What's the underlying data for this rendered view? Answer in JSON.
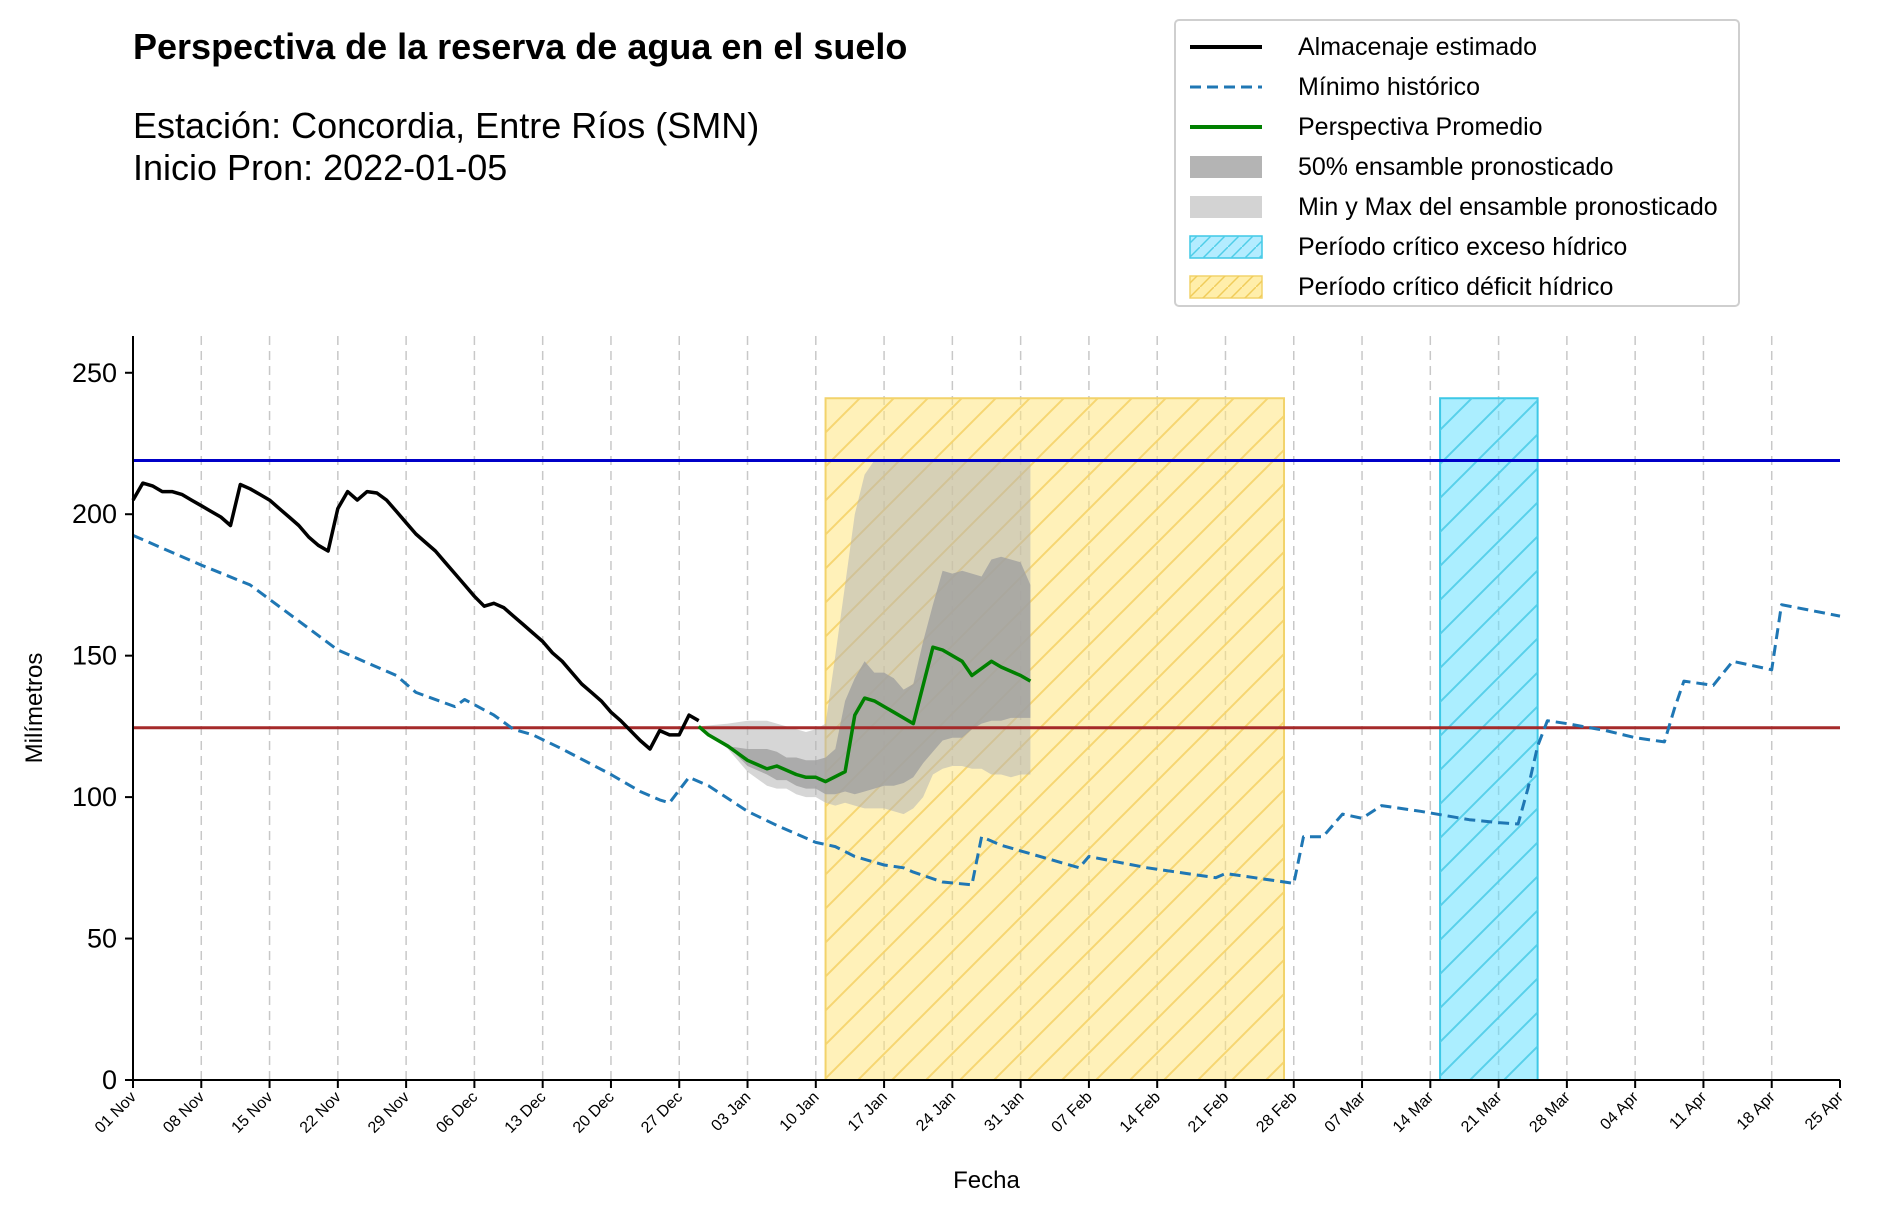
{
  "header": {
    "title": "Perspectiva de la reserva de agua en el suelo",
    "station": "Estación: Concordia, Entre Ríos (SMN)",
    "start": "Inicio Pron: 2022-01-05"
  },
  "chart_data": {
    "type": "line",
    "xlabel": "Fecha",
    "ylabel": "Milímetros",
    "x_start": "2021-11-01",
    "x_end": "2022-04-25",
    "xlim_days": [
      0,
      175
    ],
    "ylim": [
      0,
      263
    ],
    "yticks": [
      0,
      50,
      100,
      150,
      200,
      250
    ],
    "xticks": [
      {
        "day": 0,
        "label": "01 Nov"
      },
      {
        "day": 7,
        "label": "08 Nov"
      },
      {
        "day": 14,
        "label": "15 Nov"
      },
      {
        "day": 21,
        "label": "22 Nov"
      },
      {
        "day": 28,
        "label": "29 Nov"
      },
      {
        "day": 35,
        "label": "06 Dec"
      },
      {
        "day": 42,
        "label": "13 Dec"
      },
      {
        "day": 49,
        "label": "20 Dec"
      },
      {
        "day": 56,
        "label": "27 Dec"
      },
      {
        "day": 63,
        "label": "03 Jan"
      },
      {
        "day": 70,
        "label": "10 Jan"
      },
      {
        "day": 77,
        "label": "17 Jan"
      },
      {
        "day": 84,
        "label": "24 Jan"
      },
      {
        "day": 91,
        "label": "31 Jan"
      },
      {
        "day": 98,
        "label": "07 Feb"
      },
      {
        "day": 105,
        "label": "14 Feb"
      },
      {
        "day": 112,
        "label": "21 Feb"
      },
      {
        "day": 119,
        "label": "28 Feb"
      },
      {
        "day": 126,
        "label": "07 Mar"
      },
      {
        "day": 133,
        "label": "14 Mar"
      },
      {
        "day": 140,
        "label": "21 Mar"
      },
      {
        "day": 147,
        "label": "28 Mar"
      },
      {
        "day": 154,
        "label": "04 Apr"
      },
      {
        "day": 161,
        "label": "11 Apr"
      },
      {
        "day": 168,
        "label": "18 Apr"
      },
      {
        "day": 175,
        "label": "25 Apr"
      }
    ],
    "grid": "x-dashed",
    "legend_position": "top-right",
    "reference_lines": [
      {
        "y": 219,
        "color": "#0000c8"
      },
      {
        "y": 124.5,
        "color": "#a52a2a"
      }
    ],
    "periods": [
      {
        "name": "Período crítico déficit hídrico",
        "start_day": 71,
        "end_day": 118,
        "y_top": 241,
        "color": "#ffe680"
      },
      {
        "name": "Período crítico exceso hídrico",
        "start_day": 134,
        "end_day": 144,
        "y_top": 241,
        "color": "#66e0ff"
      }
    ],
    "series": [
      {
        "name": "Almacenaje estimado",
        "color": "#000000",
        "style": "solid",
        "points": [
          [
            0,
            205
          ],
          [
            1,
            211
          ],
          [
            2,
            210
          ],
          [
            3,
            208
          ],
          [
            4,
            208
          ],
          [
            5,
            207
          ],
          [
            6,
            205
          ],
          [
            7,
            203
          ],
          [
            8,
            201
          ],
          [
            9,
            199
          ],
          [
            10,
            196
          ],
          [
            11,
            210.5
          ],
          [
            12,
            209
          ],
          [
            13,
            207
          ],
          [
            14,
            205
          ],
          [
            15,
            202
          ],
          [
            16,
            199
          ],
          [
            17,
            196
          ],
          [
            18,
            192
          ],
          [
            19,
            189
          ],
          [
            20,
            187
          ],
          [
            21,
            202
          ],
          [
            22,
            208
          ],
          [
            23,
            205
          ],
          [
            24,
            208
          ],
          [
            25,
            207.5
          ],
          [
            26,
            205
          ],
          [
            27,
            201
          ],
          [
            28,
            197
          ],
          [
            29,
            193
          ],
          [
            30,
            190
          ],
          [
            31,
            187
          ],
          [
            32,
            183
          ],
          [
            33,
            179
          ],
          [
            34,
            175
          ],
          [
            35,
            171
          ],
          [
            36,
            167.5
          ],
          [
            37,
            168.5
          ],
          [
            38,
            167
          ],
          [
            39,
            164
          ],
          [
            40,
            161
          ],
          [
            41,
            158
          ],
          [
            42,
            155
          ],
          [
            43,
            151
          ],
          [
            44,
            148
          ],
          [
            45,
            144
          ],
          [
            46,
            140
          ],
          [
            47,
            137
          ],
          [
            48,
            134
          ],
          [
            49,
            130
          ],
          [
            50,
            127
          ],
          [
            51,
            123.5
          ],
          [
            52,
            120
          ],
          [
            53,
            117
          ],
          [
            54,
            123.5
          ],
          [
            55,
            122
          ],
          [
            56,
            122
          ],
          [
            57,
            129
          ],
          [
            58,
            127
          ]
        ]
      },
      {
        "name": "Mínimo histórico",
        "color": "#1f77b4",
        "style": "dashed",
        "points": [
          [
            0,
            192.5
          ],
          [
            7,
            182
          ],
          [
            12,
            175
          ],
          [
            21,
            152
          ],
          [
            27,
            143
          ],
          [
            29,
            137
          ],
          [
            33,
            132
          ],
          [
            34,
            134.5
          ],
          [
            37,
            129
          ],
          [
            39,
            124
          ],
          [
            41,
            122
          ],
          [
            44,
            117
          ],
          [
            49,
            108
          ],
          [
            52,
            102
          ],
          [
            54,
            99
          ],
          [
            55,
            98
          ],
          [
            57,
            107
          ],
          [
            59,
            104
          ],
          [
            63,
            95
          ],
          [
            66,
            90
          ],
          [
            70,
            84
          ],
          [
            72,
            82.5
          ],
          [
            74,
            79
          ],
          [
            77,
            76
          ],
          [
            79,
            75
          ],
          [
            80,
            73.5
          ],
          [
            83,
            70
          ],
          [
            86,
            69
          ],
          [
            87,
            86
          ],
          [
            89,
            83
          ],
          [
            91,
            81
          ],
          [
            94,
            78
          ],
          [
            97,
            75
          ],
          [
            98,
            79
          ],
          [
            101,
            77
          ],
          [
            104,
            75
          ],
          [
            108,
            73
          ],
          [
            111,
            71.5
          ],
          [
            112,
            73
          ],
          [
            115,
            71.5
          ],
          [
            119,
            69.5
          ],
          [
            120,
            86
          ],
          [
            122,
            86
          ],
          [
            124,
            94
          ],
          [
            126,
            92.5
          ],
          [
            128,
            97
          ],
          [
            132,
            95
          ],
          [
            137,
            92
          ],
          [
            140,
            91
          ],
          [
            142,
            90.5
          ],
          [
            143,
            103
          ],
          [
            144,
            118
          ],
          [
            145,
            127
          ],
          [
            147,
            126
          ],
          [
            151,
            123.5
          ],
          [
            154,
            121
          ],
          [
            157,
            119.5
          ],
          [
            158,
            131
          ],
          [
            159,
            141
          ],
          [
            162,
            139.5
          ],
          [
            164,
            148
          ],
          [
            168,
            145
          ],
          [
            169,
            168
          ],
          [
            175,
            164
          ]
        ]
      },
      {
        "name": "Perspectiva Promedio",
        "color": "#008000",
        "style": "solid",
        "points": [
          [
            58,
            125
          ],
          [
            59,
            122
          ],
          [
            61,
            118
          ],
          [
            63,
            113
          ],
          [
            65,
            110
          ],
          [
            66,
            111
          ],
          [
            68,
            108
          ],
          [
            69,
            107
          ],
          [
            70,
            107
          ],
          [
            71,
            105.5
          ],
          [
            73,
            109
          ],
          [
            74,
            129
          ],
          [
            75,
            135
          ],
          [
            76,
            134
          ],
          [
            78,
            130
          ],
          [
            80,
            126
          ],
          [
            82,
            153
          ],
          [
            83,
            152
          ],
          [
            85,
            148
          ],
          [
            86,
            143
          ],
          [
            88,
            148
          ],
          [
            89,
            146
          ],
          [
            91,
            143
          ],
          [
            92,
            141
          ]
        ]
      }
    ],
    "bands": [
      {
        "name": "Min y Max del ensamble pronosticado",
        "color": "#b4b4b4",
        "opacity": 0.55,
        "x": [
          58,
          61,
          63,
          65,
          66,
          67,
          68,
          69,
          70,
          71,
          72,
          73,
          74,
          75,
          76,
          77,
          78,
          79,
          80,
          81,
          82,
          83,
          84,
          85,
          86,
          87,
          88,
          89,
          90,
          91,
          92
        ],
        "lower": [
          125,
          117,
          109,
          104,
          103,
          103,
          101,
          100,
          100,
          98,
          97,
          98,
          97,
          96,
          96,
          96,
          95,
          94,
          96,
          100,
          108,
          110,
          111,
          111,
          110,
          110,
          108,
          108,
          107,
          108,
          108
        ],
        "upper": [
          125,
          126,
          127,
          127,
          126,
          125,
          124,
          123,
          124,
          126,
          150,
          175,
          200,
          214,
          219,
          219,
          219,
          219,
          219,
          219,
          219,
          219,
          219,
          219,
          219,
          219,
          219,
          219,
          219,
          219,
          219
        ]
      },
      {
        "name": "50% ensamble pronosticado",
        "color": "#a0a0a0",
        "opacity": 0.8,
        "x": [
          61,
          63,
          65,
          66,
          67,
          68,
          69,
          70,
          71,
          72,
          73,
          74,
          75,
          76,
          77,
          78,
          79,
          80,
          81,
          82,
          83,
          84,
          85,
          86,
          87,
          88,
          89,
          90,
          91,
          92
        ],
        "lower": [
          118,
          111,
          108,
          106,
          106,
          104,
          103,
          103,
          101,
          101,
          102,
          101,
          102,
          103,
          104,
          104,
          105,
          107,
          112,
          116,
          120,
          121,
          121,
          124,
          126,
          127,
          127,
          128,
          128,
          128
        ],
        "upper": [
          118,
          117,
          117,
          116,
          114,
          114,
          113,
          113,
          114,
          117,
          134,
          142,
          148,
          144,
          144,
          142,
          138,
          140,
          155,
          168,
          180,
          179,
          180,
          179,
          178,
          184,
          185,
          184,
          183,
          175
        ]
      }
    ]
  },
  "legend": [
    {
      "label": "Almacenaje estimado",
      "kind": "line",
      "color": "#000000"
    },
    {
      "label": "Mínimo histórico",
      "kind": "dash",
      "color": "#1f77b4"
    },
    {
      "label": "Perspectiva Promedio",
      "kind": "line",
      "color": "#008000"
    },
    {
      "label": "50% ensamble pronosticado",
      "kind": "patch",
      "color": "#b4b4b4"
    },
    {
      "label": "Min y Max del ensamble pronosticado",
      "kind": "patch",
      "color": "#d3d3d3"
    },
    {
      "label": "Período crítico exceso hídrico",
      "kind": "hatch",
      "color": "#b3ecff"
    },
    {
      "label": "Período crítico déficit hídrico",
      "kind": "hatch",
      "color": "#ffeeaa"
    }
  ]
}
